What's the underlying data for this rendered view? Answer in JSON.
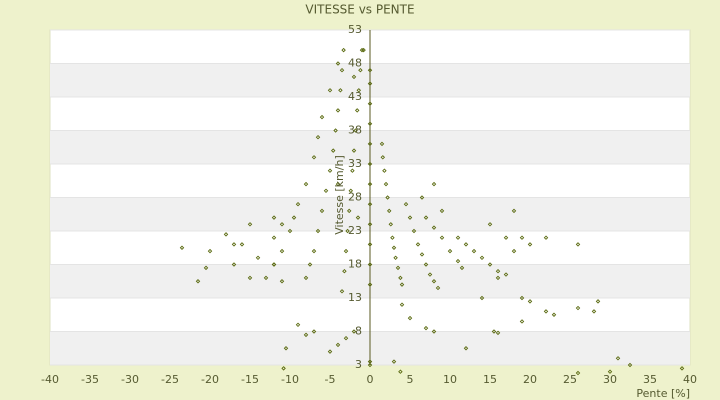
{
  "chart_data": {
    "type": "scatter",
    "title": "VITESSE vs PENTE",
    "xlabel": "Pente [%]",
    "ylabel": "Vitesse [km/h]",
    "xlim": [
      -40,
      40
    ],
    "ylim": [
      3,
      53
    ],
    "xticks": [
      -40,
      -35,
      -30,
      -25,
      -20,
      -15,
      -10,
      -5,
      0,
      5,
      10,
      15,
      20,
      25,
      30,
      35,
      40
    ],
    "yticks": [
      3,
      8,
      13,
      18,
      23,
      28,
      33,
      38,
      43,
      48,
      53
    ],
    "color": "#5a6a10",
    "grid": true,
    "x": [
      0,
      0,
      0,
      0,
      0,
      0,
      0,
      0,
      0,
      0,
      0,
      0,
      0,
      0,
      1.5,
      1.6,
      1.8,
      2,
      2.2,
      2.4,
      2.6,
      2.8,
      3,
      3.2,
      3.5,
      3.8,
      4,
      4.5,
      5,
      5.5,
      6,
      6.5,
      7,
      7.5,
      8,
      8.5,
      7,
      8,
      9,
      10,
      11,
      11.5,
      11,
      12,
      13,
      14,
      15,
      16,
      17,
      8,
      6.5,
      9,
      15,
      17,
      18,
      19,
      20,
      22,
      18,
      26,
      16,
      14,
      19,
      20,
      22,
      23,
      26,
      28,
      28.5,
      19,
      15.5,
      16,
      12,
      7,
      8,
      5,
      4,
      3,
      3.8,
      26,
      30,
      31,
      32.5,
      39,
      -1,
      -1.2,
      -1.4,
      -1.6,
      -1.8,
      -2,
      -2.2,
      -2.4,
      -2.6,
      -2.8,
      -3,
      -3.2,
      -3.5,
      -3.3,
      -3.5,
      -3.7,
      -4,
      -4.3,
      -4.6,
      -5,
      -5.5,
      -6,
      -6.5,
      -7,
      -7.5,
      -8,
      -5,
      -6,
      -6.5,
      -7,
      -8,
      -9,
      -10,
      -11,
      -12,
      -13,
      -4,
      -2,
      -3,
      -4,
      -5,
      -7,
      -8,
      -9,
      -10.5,
      -10.8,
      -11,
      -12,
      -14,
      -15,
      -17,
      -18,
      -20,
      -20.5,
      -21.5,
      -23.5,
      -15,
      -16,
      -12,
      -11,
      -9.5,
      -17,
      -12,
      -1.5,
      -2,
      -4,
      -0.8
    ],
    "values": [
      15,
      18,
      21,
      24,
      27,
      30,
      33,
      36,
      39,
      42,
      45,
      47,
      3,
      3.5,
      36,
      34,
      32,
      30,
      28,
      26,
      24,
      22,
      20.5,
      19,
      17.5,
      16,
      15,
      27,
      25,
      23,
      21,
      19.5,
      18,
      16.5,
      15.5,
      14.5,
      25,
      23.5,
      22,
      20,
      18.5,
      17.5,
      22,
      21,
      20,
      19,
      18,
      17,
      16.5,
      30,
      28,
      26,
      24,
      22,
      20,
      22,
      21,
      22,
      26,
      21,
      16,
      13,
      13,
      12.5,
      11,
      10.5,
      11.5,
      11,
      12.5,
      9.5,
      8,
      7.8,
      5.5,
      8.5,
      8,
      10,
      12,
      3.5,
      2,
      1.8,
      2,
      4,
      3,
      2.5,
      50,
      47,
      44,
      41,
      38,
      35,
      32,
      29,
      26,
      23,
      20,
      17,
      14,
      50,
      47,
      44,
      41,
      38,
      35,
      32,
      29,
      26,
      23,
      20,
      18,
      16,
      44,
      40,
      37,
      34,
      30,
      27,
      23,
      20,
      18,
      16,
      30,
      8,
      7,
      6,
      5,
      8,
      7.5,
      9,
      5.5,
      2.5,
      15.5,
      18,
      19,
      16,
      18,
      22.5,
      20,
      17.5,
      15.5,
      20.5,
      24,
      21,
      22,
      24,
      25,
      21,
      25,
      25,
      46,
      48,
      50
    ]
  }
}
